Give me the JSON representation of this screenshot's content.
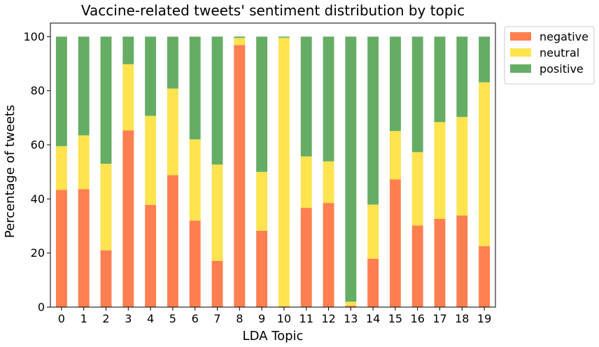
{
  "chart_data": {
    "type": "bar",
    "stacked": true,
    "title": "Vaccine-related tweets' sentiment distribution by topic",
    "xlabel": "LDA Topic",
    "ylabel": "Percentage of tweets",
    "ylim": [
      0,
      105
    ],
    "yticks": [
      0,
      20,
      40,
      60,
      80,
      100
    ],
    "grid": false,
    "legend_position": "outside-top-right",
    "categories": [
      "0",
      "1",
      "2",
      "3",
      "4",
      "5",
      "6",
      "7",
      "8",
      "9",
      "10",
      "11",
      "12",
      "13",
      "14",
      "15",
      "16",
      "17",
      "18",
      "19"
    ],
    "series": [
      {
        "name": "negative",
        "color": "#ff7f50",
        "values": [
          43.3,
          43.6,
          21.0,
          65.3,
          37.8,
          48.8,
          32.0,
          17.1,
          96.9,
          28.2,
          0.3,
          36.7,
          38.5,
          0.5,
          17.9,
          47.2,
          30.2,
          32.6,
          33.9,
          22.5
        ]
      },
      {
        "name": "neutral",
        "color": "#ffe34f",
        "values": [
          16.2,
          19.9,
          32.0,
          24.5,
          32.9,
          32.0,
          30.0,
          35.6,
          2.6,
          21.8,
          99.3,
          19.0,
          15.4,
          1.5,
          20.0,
          17.9,
          27.1,
          35.8,
          36.4,
          60.6
        ]
      },
      {
        "name": "positive",
        "color": "#65ad65",
        "values": [
          40.5,
          36.5,
          47.0,
          10.2,
          29.3,
          19.2,
          38.0,
          47.3,
          0.5,
          50.0,
          0.4,
          44.3,
          46.1,
          98.0,
          62.1,
          34.9,
          42.7,
          31.6,
          29.7,
          16.9
        ]
      }
    ]
  }
}
